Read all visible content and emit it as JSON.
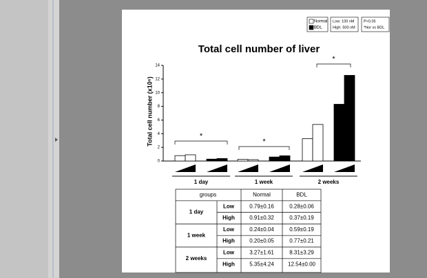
{
  "chart_data": {
    "type": "bar",
    "title": "Total cell number of liver",
    "y_label": "Total cell number (x10⁶)",
    "categories": [
      "1 day",
      "1 week",
      "2 weeks"
    ],
    "series": [
      {
        "name": "Normal",
        "color": "#ffffff",
        "values": [
          [
            0.79,
            0.91
          ],
          [
            0.24,
            0.2
          ],
          [
            3.27,
            5.35
          ]
        ]
      },
      {
        "name": "BDL",
        "color": "#000000",
        "values": [
          [
            0.28,
            0.37
          ],
          [
            0.59,
            0.77
          ],
          [
            8.31,
            12.54
          ]
        ]
      }
    ],
    "ylim": [
      0,
      14
    ],
    "yticks": [
      0,
      2,
      4,
      6,
      8,
      10,
      12,
      14
    ],
    "annotations": [
      "*",
      "*",
      "*"
    ],
    "legend_notes": [
      "Low: 100 nM",
      "High: 500 nM",
      "P<0.05",
      "*Nor vs BDL"
    ]
  },
  "table": {
    "header": [
      "groups",
      "Normal",
      "BDL"
    ],
    "groups": [
      {
        "label": "1 day",
        "rows": [
          [
            "Low",
            "0.79±0.16",
            "0.28±0.06"
          ],
          [
            "High",
            "0.91±0.32",
            "0.37±0.19"
          ]
        ]
      },
      {
        "label": "1 week",
        "rows": [
          [
            "Low",
            "0.24±0.04",
            "0.59±0.19"
          ],
          [
            "High",
            "0.20±0.05",
            "0.77±0.21"
          ]
        ]
      },
      {
        "label": "2 weeks",
        "rows": [
          [
            "Low",
            "3.27±1.61",
            "8.31±3.29"
          ],
          [
            "High",
            "5.35±4.24",
            "12.54±0.00"
          ]
        ]
      }
    ]
  }
}
